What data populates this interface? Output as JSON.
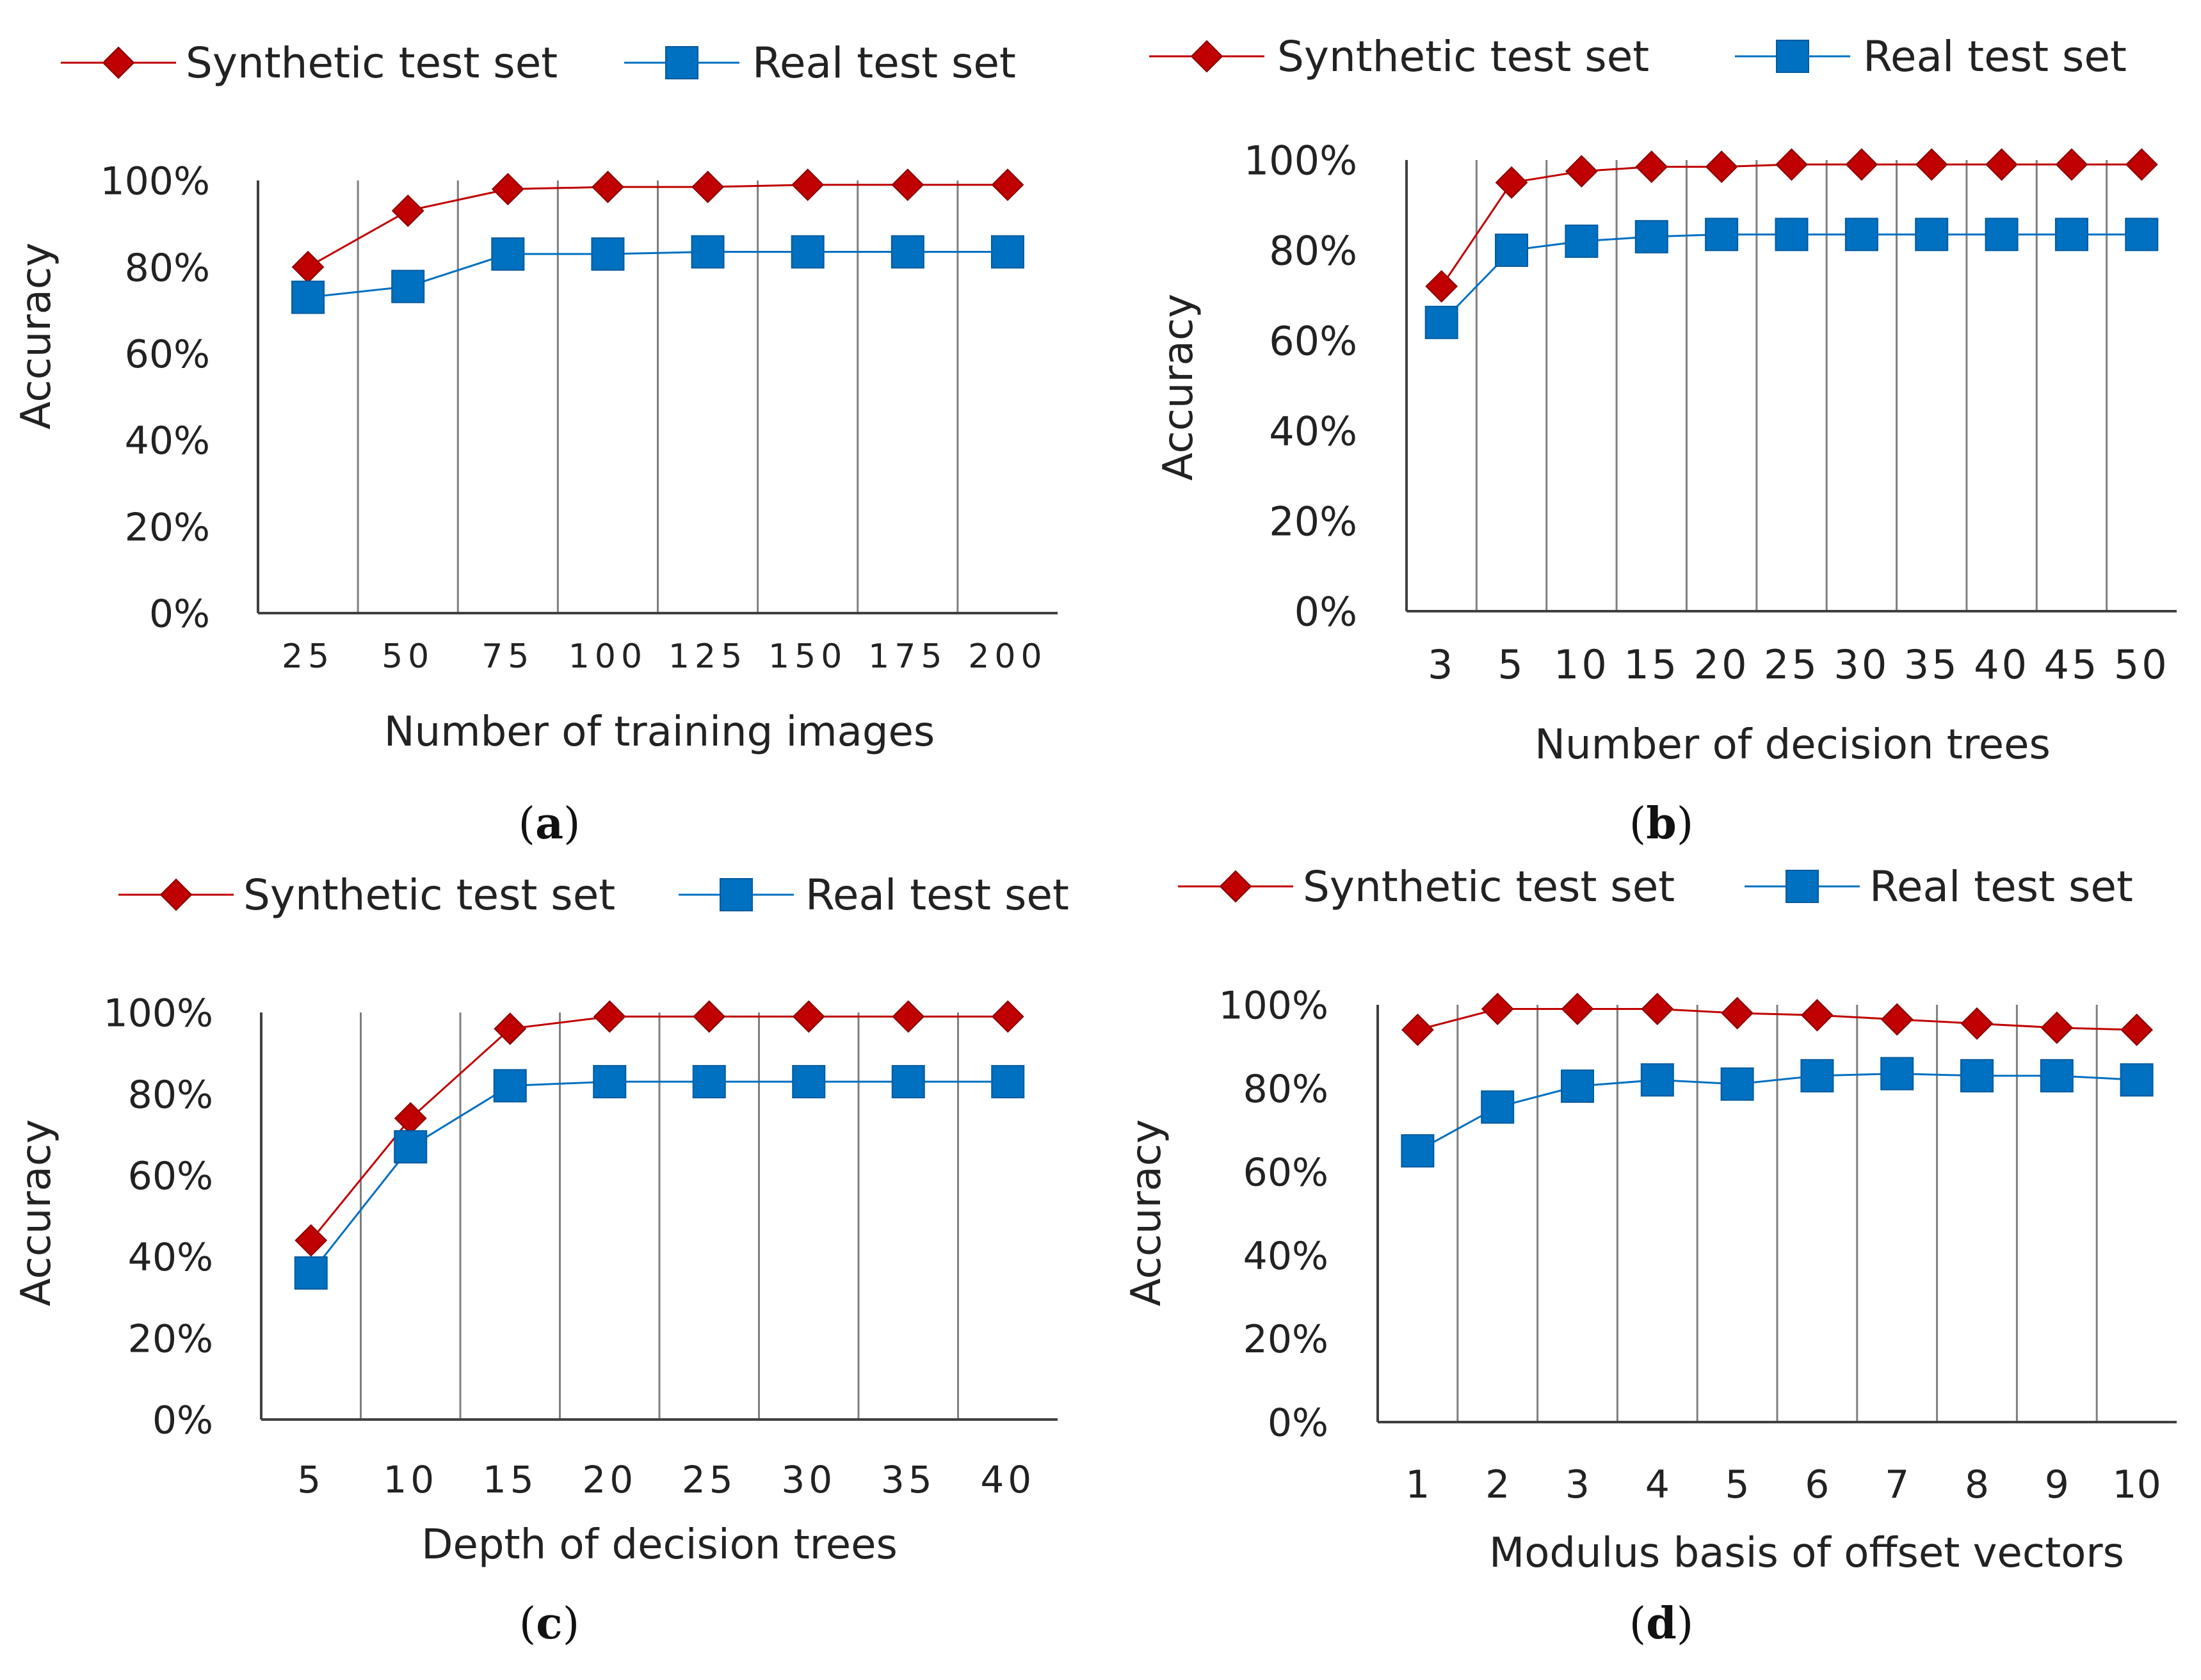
{
  "colors": {
    "synthetic": "#c00000",
    "real": "#0070c0",
    "gridline": "#7f7f7f",
    "axis": "#404040"
  },
  "chart_data": [
    {
      "panel": "a",
      "type": "line",
      "caption": "a",
      "xlabel": "Number of training images",
      "ylabel": "Accuracy",
      "categories": [
        "25",
        "50",
        "75",
        "100",
        "125",
        "150",
        "175",
        "200"
      ],
      "ylim": [
        0,
        100
      ],
      "yticks": [
        "0%",
        "20%",
        "40%",
        "60%",
        "80%",
        "100%"
      ],
      "legend_position": "top",
      "series": [
        {
          "name": "Synthetic test set",
          "marker": "diamond",
          "values": [
            80,
            93,
            98,
            98.5,
            98.5,
            99,
            99,
            99
          ]
        },
        {
          "name": "Real test set",
          "marker": "square",
          "values": [
            73,
            75.5,
            83,
            83,
            83.5,
            83.5,
            83.5,
            83.5
          ]
        }
      ]
    },
    {
      "panel": "b",
      "type": "line",
      "caption": "b",
      "xlabel": "Number of decision trees",
      "ylabel": "Accuracy",
      "categories": [
        "3",
        "5",
        "10",
        "15",
        "20",
        "25",
        "30",
        "35",
        "40",
        "45",
        "50"
      ],
      "ylim": [
        0,
        100
      ],
      "yticks": [
        "0%",
        "20%",
        "40%",
        "60%",
        "80%",
        "100%"
      ],
      "legend_position": "top",
      "series": [
        {
          "name": "Synthetic test set",
          "marker": "diamond",
          "values": [
            72,
            95,
            97.5,
            98.5,
            98.5,
            99,
            99,
            99,
            99,
            99,
            99
          ]
        },
        {
          "name": "Real test set",
          "marker": "square",
          "values": [
            64,
            80,
            82,
            83,
            83.5,
            83.5,
            83.5,
            83.5,
            83.5,
            83.5,
            83.5
          ]
        }
      ]
    },
    {
      "panel": "c",
      "type": "line",
      "caption": "c",
      "xlabel": "Depth of decision trees",
      "ylabel": "Accuracy",
      "categories": [
        "5",
        "10",
        "15",
        "20",
        "25",
        "30",
        "35",
        "40"
      ],
      "ylim": [
        0,
        100
      ],
      "yticks": [
        "0%",
        "20%",
        "40%",
        "60%",
        "80%",
        "100%"
      ],
      "legend_position": "top",
      "series": [
        {
          "name": "Synthetic test set",
          "marker": "diamond",
          "values": [
            44,
            74,
            96,
            99,
            99,
            99,
            99,
            99
          ]
        },
        {
          "name": "Real test set",
          "marker": "square",
          "values": [
            36,
            67,
            82,
            83,
            83,
            83,
            83,
            83
          ]
        }
      ]
    },
    {
      "panel": "d",
      "type": "line",
      "caption": "d",
      "xlabel": "Modulus basis of offset vectors",
      "ylabel": "Accuracy",
      "categories": [
        "1",
        "2",
        "3",
        "4",
        "5",
        "6",
        "7",
        "8",
        "9",
        "10"
      ],
      "ylim": [
        0,
        100
      ],
      "yticks": [
        "0%",
        "20%",
        "40%",
        "60%",
        "80%",
        "100%"
      ],
      "legend_position": "top",
      "series": [
        {
          "name": "Synthetic test set",
          "marker": "diamond",
          "values": [
            94,
            99,
            99,
            99,
            98,
            97.5,
            96.5,
            95.5,
            94.5,
            94
          ]
        },
        {
          "name": "Real test set",
          "marker": "square",
          "values": [
            65,
            75.5,
            80.5,
            82,
            81,
            83,
            83.5,
            83,
            83,
            82
          ]
        }
      ]
    }
  ]
}
